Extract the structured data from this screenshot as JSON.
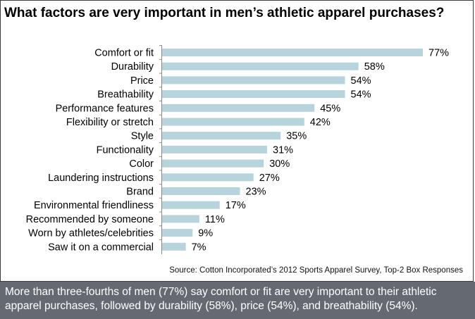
{
  "chart_data": {
    "type": "bar",
    "orientation": "horizontal",
    "title": "What factors are very important in men’s athletic apparel purchases?",
    "categories": [
      "Comfort or fit",
      "Durability",
      "Price",
      "Breathability",
      "Performance features",
      "Flexibility or stretch",
      "Style",
      "Functionality",
      "Color",
      "Laundering instructions",
      "Brand",
      "Environmental friendliness",
      "Recommended by someone",
      "Worn by athletes/celebrities",
      "Saw it on a commercial"
    ],
    "values": [
      77,
      58,
      54,
      54,
      45,
      42,
      35,
      31,
      30,
      27,
      23,
      17,
      11,
      9,
      7
    ],
    "value_labels": [
      "77%",
      "58%",
      "54%",
      "54%",
      "45%",
      "42%",
      "35%",
      "31%",
      "30%",
      "27%",
      "23%",
      "17%",
      "11%",
      "9%",
      "7%"
    ],
    "unit": "%",
    "xlim": [
      0,
      77
    ],
    "bar_color": "#b7d3dc",
    "xlabel": "",
    "ylabel": "",
    "grid": false,
    "legend": "none"
  },
  "source": "Source: Cotton Incorporated’s  2012 Sports Apparel Survey, Top-2 Box Responses",
  "caption": "More than three-fourths  of men (77%) say comfort or fit are very important to their athletic apparel purchases, followed by durability (58%), price (54%), and breathability (54%).",
  "colors": {
    "caption_bg": "#656a72",
    "bar": "#b7d3dc",
    "border": "#3c3c3c"
  }
}
